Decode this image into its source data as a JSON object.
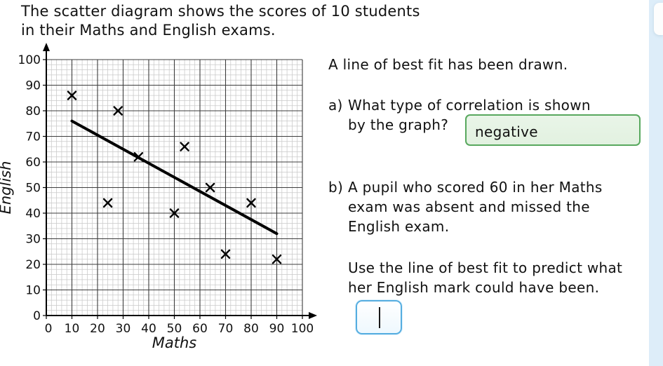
{
  "title_lines": [
    "The scatter diagram shows the scores of 10 students",
    "in their Maths and English exams."
  ],
  "chart_data": {
    "type": "scatter",
    "title": "",
    "xlabel": "Maths",
    "ylabel": "English",
    "xlim": [
      0,
      100
    ],
    "ylim": [
      0,
      100
    ],
    "x_ticks": [
      0,
      10,
      20,
      30,
      40,
      50,
      60,
      70,
      80,
      90,
      100
    ],
    "y_ticks": [
      0,
      10,
      20,
      30,
      40,
      50,
      60,
      70,
      80,
      90,
      100
    ],
    "major_grid_step": 10,
    "minor_grid_step": 2,
    "grid": true,
    "marker": "x",
    "points": [
      [
        10,
        86
      ],
      [
        28,
        80
      ],
      [
        36,
        62
      ],
      [
        54,
        66
      ],
      [
        64,
        50
      ],
      [
        24,
        44
      ],
      [
        50,
        40
      ],
      [
        70,
        24
      ],
      [
        80,
        44
      ],
      [
        90,
        22
      ]
    ],
    "best_fit_line": {
      "x1": 10,
      "y1": 76,
      "x2": 90,
      "y2": 32
    }
  },
  "right_panel": {
    "intro": "A line of best fit has been drawn.",
    "question_a": {
      "label": "a)",
      "lines": [
        "What type of correlation is shown",
        "by the graph?"
      ],
      "answer": "negative"
    },
    "question_b": {
      "label": "b)",
      "lines": [
        "A pupil who scored 60 in her Maths",
        "exam was absent and missed the",
        "English exam."
      ],
      "prompt_lines": [
        "Use the line of best fit to predict what",
        "her English mark could have been."
      ],
      "answer": ""
    }
  },
  "colors": {
    "correct_answer_border": "#58a85e",
    "correct_answer_bg": "#e6f3e4",
    "input_border": "#55ade0",
    "scroll_track": "#ddedf9",
    "grid_major": "#3d3d3d",
    "grid_minor": "#c9c9c9",
    "ink": "#000000"
  }
}
